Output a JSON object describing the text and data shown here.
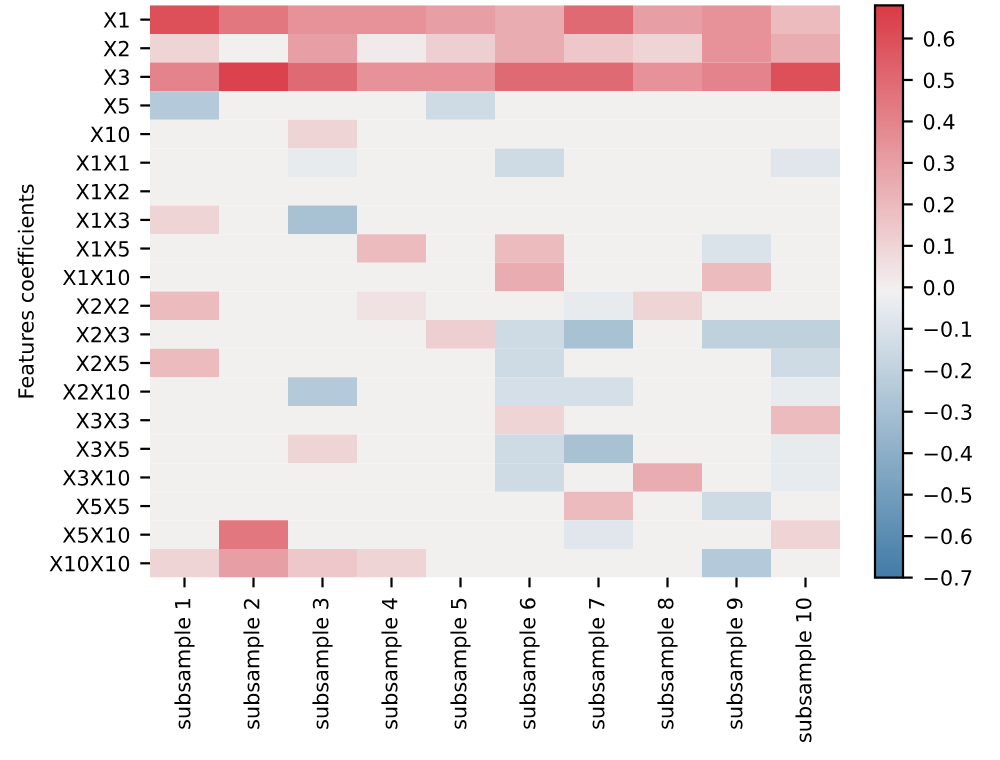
{
  "chart_data": {
    "type": "heatmap",
    "ylabel": "Features coefficients",
    "categories": [
      "subsample 1",
      "subsample 2",
      "subsample 3",
      "subsample 4",
      "subsample 5",
      "subsample 6",
      "subsample 7",
      "subsample 8",
      "subsample 9",
      "subsample 10"
    ],
    "y_categories": [
      "X1",
      "X2",
      "X3",
      "X5",
      "X10",
      "X1X1",
      "X1X2",
      "X1X3",
      "X1X5",
      "X1X10",
      "X2X2",
      "X2X3",
      "X2X5",
      "X2X10",
      "X3X3",
      "X3X5",
      "X3X10",
      "X5X5",
      "X5X10",
      "X10X10"
    ],
    "cells": [
      [
        0.6,
        0.45,
        0.35,
        0.35,
        0.3,
        0.25,
        0.5,
        0.3,
        0.35,
        0.2
      ],
      [
        0.1,
        0,
        0.3,
        0.02,
        0.12,
        0.25,
        0.15,
        0.1,
        0.35,
        0.25
      ],
      [
        0.4,
        0.65,
        0.5,
        0.35,
        0.35,
        0.5,
        0.5,
        0.35,
        0.4,
        0.6
      ],
      [
        -0.25,
        0,
        0,
        0,
        -0.15,
        0,
        0,
        0,
        0,
        0
      ],
      [
        0,
        0,
        0.1,
        0,
        0,
        0,
        0,
        0,
        0,
        0
      ],
      [
        0,
        0,
        -0.05,
        0,
        0,
        -0.15,
        0,
        0,
        0,
        -0.08
      ],
      [
        0,
        0,
        0,
        0,
        0,
        0,
        0,
        0,
        0,
        0
      ],
      [
        0.1,
        0,
        -0.3,
        0,
        0,
        0,
        0,
        0,
        0,
        0
      ],
      [
        0,
        0,
        0,
        0.2,
        0,
        0.2,
        0,
        0,
        -0.1,
        0
      ],
      [
        0,
        0,
        0,
        0,
        0,
        0.25,
        0,
        0,
        0.2,
        0
      ],
      [
        0.2,
        0,
        0,
        0.05,
        0,
        0,
        -0.05,
        0.1,
        0,
        0
      ],
      [
        0,
        0,
        0,
        0,
        0.12,
        -0.15,
        -0.3,
        0,
        -0.2,
        -0.2
      ],
      [
        0.2,
        0,
        0,
        0,
        0,
        -0.15,
        0,
        0,
        0,
        -0.15
      ],
      [
        0,
        0,
        -0.25,
        0,
        0,
        -0.12,
        -0.12,
        0,
        0,
        -0.05
      ],
      [
        0,
        0,
        0,
        0,
        0,
        0.1,
        0,
        0,
        0,
        0.2
      ],
      [
        0,
        0,
        0.1,
        0,
        0,
        -0.15,
        -0.3,
        0,
        0,
        -0.05
      ],
      [
        0,
        0,
        0,
        0,
        0,
        -0.15,
        0,
        0.25,
        0,
        -0.05
      ],
      [
        0,
        0,
        0,
        0,
        0,
        0,
        0.2,
        0,
        -0.15,
        0
      ],
      [
        0,
        0.45,
        0,
        0,
        0,
        0,
        -0.08,
        0,
        0,
        0.1
      ],
      [
        0.1,
        0.3,
        0.15,
        0.1,
        0,
        0,
        0,
        0,
        -0.25,
        0
      ]
    ],
    "clim": [
      -0.7,
      0.68
    ],
    "cticks": [
      {
        "value": -0.7,
        "label": "−0.7"
      },
      {
        "value": -0.6,
        "label": "−0.6"
      },
      {
        "value": -0.5,
        "label": "−0.5"
      },
      {
        "value": -0.4,
        "label": "−0.4"
      },
      {
        "value": -0.3,
        "label": "−0.3"
      },
      {
        "value": -0.2,
        "label": "−0.2"
      },
      {
        "value": -0.1,
        "label": "−0.1"
      },
      {
        "value": 0,
        "label": "0.0"
      },
      0.1,
      0.2,
      0.3,
      0.4,
      0.5,
      0.6
    ]
  }
}
